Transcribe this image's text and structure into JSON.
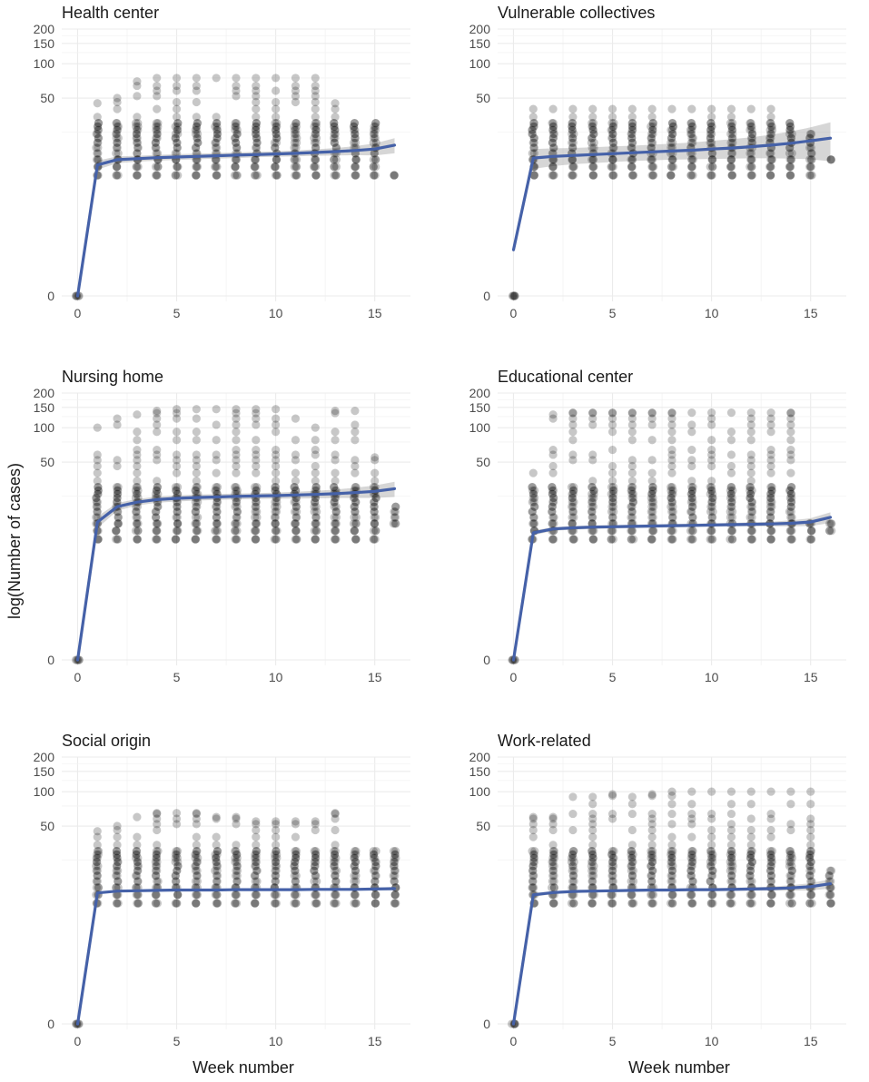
{
  "figure": {
    "y_axis_title": "log(Number of cases)",
    "x_axis_title": "Week number"
  },
  "chart_data": [
    {
      "type": "scatter",
      "title": "Health center",
      "xlabel": "Week number",
      "ylabel": "log(Number of cases)",
      "xlim": [
        -0.8,
        16.8
      ],
      "x_ticks": [
        "0",
        "5",
        "10",
        "15"
      ],
      "y_ticks": [
        "0",
        "50",
        "100",
        "150",
        "200"
      ],
      "y_scale": "log",
      "points_max": [
        0,
        45,
        50,
        70,
        75,
        75,
        75,
        75,
        75,
        75,
        75,
        75,
        75,
        45,
        30,
        30,
        10
      ],
      "points_min": [
        0,
        10,
        10,
        10,
        10,
        10,
        10,
        10,
        10,
        10,
        10,
        10,
        10,
        10,
        10,
        10,
        10
      ],
      "trend": [
        0,
        12.5,
        14,
        14.3,
        14.6,
        14.8,
        15.0,
        15.2,
        15.4,
        15.6,
        15.8,
        16.0,
        16.3,
        16.6,
        17.0,
        17.5,
        19
      ],
      "ci_width": [
        0,
        1.2,
        1.0,
        0.9,
        0.9,
        0.9,
        0.9,
        0.9,
        0.9,
        0.9,
        0.9,
        1.0,
        1.1,
        1.3,
        1.6,
        2.2,
        3.0
      ]
    },
    {
      "type": "scatter",
      "title": "Vulnerable collectives",
      "xlabel": "Week number",
      "ylabel": "log(Number of cases)",
      "xlim": [
        -0.8,
        16.8
      ],
      "x_ticks": [
        "0",
        "5",
        "10",
        "15"
      ],
      "y_ticks": [
        "0",
        "50",
        "100",
        "150",
        "200"
      ],
      "y_scale": "log",
      "points_max": [
        0,
        40,
        40,
        40,
        40,
        40,
        40,
        40,
        40,
        40,
        40,
        40,
        40,
        40,
        30,
        25,
        14
      ],
      "points_min": [
        0,
        10,
        10,
        10,
        10,
        10,
        10,
        10,
        10,
        10,
        10,
        10,
        10,
        10,
        10,
        10,
        14
      ],
      "trend": [
        1.5,
        14.5,
        15.0,
        15.3,
        15.6,
        15.9,
        16.2,
        16.5,
        16.8,
        17.1,
        17.5,
        17.9,
        18.4,
        19.0,
        19.8,
        20.8,
        22
      ],
      "ci_width": [
        0,
        3.0,
        2.8,
        2.6,
        2.6,
        2.6,
        2.6,
        2.7,
        2.8,
        3.0,
        3.3,
        3.6,
        4.0,
        4.6,
        5.5,
        6.7,
        8.5
      ]
    },
    {
      "type": "scatter",
      "title": "Nursing home",
      "xlabel": "Week number",
      "ylabel": "log(Number of cases)",
      "xlim": [
        -0.8,
        16.8
      ],
      "x_ticks": [
        "0",
        "5",
        "10",
        "15"
      ],
      "y_ticks": [
        "0",
        "50",
        "100",
        "150",
        "200"
      ],
      "y_scale": "log",
      "points_max": [
        0,
        100,
        120,
        130,
        140,
        145,
        145,
        145,
        145,
        145,
        145,
        120,
        100,
        140,
        140,
        55,
        20
      ],
      "points_min": [
        0,
        10,
        10,
        10,
        10,
        10,
        10,
        10,
        10,
        10,
        10,
        10,
        10,
        10,
        10,
        10,
        14
      ],
      "trend": [
        0,
        14.5,
        20,
        22,
        23.2,
        23.8,
        24.2,
        24.5,
        24.8,
        25.0,
        25.2,
        25.5,
        25.8,
        26.2,
        26.8,
        27.5,
        29
      ],
      "ci_width": [
        0,
        1.8,
        1.6,
        1.5,
        1.5,
        1.5,
        1.5,
        1.5,
        1.5,
        1.5,
        1.6,
        1.8,
        2.0,
        2.3,
        2.8,
        3.5,
        4.5
      ]
    },
    {
      "type": "scatter",
      "title": "Educational center",
      "xlabel": "Week number",
      "ylabel": "log(Number of cases)",
      "xlim": [
        -0.8,
        16.8
      ],
      "x_ticks": [
        "0",
        "5",
        "10",
        "15"
      ],
      "y_ticks": [
        "0",
        "50",
        "100",
        "150",
        "200"
      ],
      "y_scale": "log",
      "points_max": [
        0,
        40,
        130,
        135,
        135,
        135,
        135,
        135,
        135,
        135,
        135,
        135,
        135,
        135,
        135,
        15,
        14
      ],
      "points_min": [
        0,
        10,
        10,
        10,
        10,
        10,
        10,
        10,
        10,
        10,
        10,
        10,
        10,
        10,
        10,
        10,
        12
      ],
      "trend": [
        0,
        11.5,
        12.5,
        12.8,
        13.0,
        13.1,
        13.2,
        13.3,
        13.4,
        13.5,
        13.6,
        13.7,
        13.8,
        13.9,
        14.1,
        14.5,
        16
      ],
      "ci_width": [
        0,
        0.6,
        0.5,
        0.5,
        0.5,
        0.5,
        0.5,
        0.5,
        0.5,
        0.5,
        0.5,
        0.5,
        0.6,
        0.7,
        0.9,
        1.2,
        1.8
      ]
    },
    {
      "type": "scatter",
      "title": "Social origin",
      "xlabel": "Week number",
      "ylabel": "log(Number of cases)",
      "xlim": [
        -0.8,
        16.8
      ],
      "x_ticks": [
        "0",
        "5",
        "10",
        "15"
      ],
      "y_ticks": [
        "0",
        "50",
        "100",
        "150",
        "200"
      ],
      "y_scale": "log",
      "points_max": [
        0,
        45,
        50,
        60,
        65,
        65,
        65,
        60,
        60,
        55,
        55,
        55,
        55,
        65,
        30,
        30,
        30
      ],
      "points_min": [
        0,
        10,
        10,
        10,
        10,
        10,
        10,
        10,
        10,
        10,
        10,
        10,
        10,
        10,
        10,
        10,
        10
      ],
      "trend": [
        0,
        12.5,
        13.0,
        13.1,
        13.2,
        13.3,
        13.3,
        13.3,
        13.4,
        13.4,
        13.4,
        13.4,
        13.5,
        13.5,
        13.5,
        13.6,
        13.7
      ],
      "ci_width": [
        0,
        0.3,
        0.3,
        0.3,
        0.3,
        0.3,
        0.3,
        0.3,
        0.3,
        0.3,
        0.3,
        0.3,
        0.3,
        0.3,
        0.35,
        0.4,
        0.5
      ]
    },
    {
      "type": "scatter",
      "title": "Work-related",
      "xlabel": "Week number",
      "ylabel": "log(Number of cases)",
      "xlim": [
        -0.8,
        16.8
      ],
      "x_ticks": [
        "0",
        "5",
        "10",
        "15"
      ],
      "y_ticks": [
        "0",
        "50",
        "100",
        "150",
        "200"
      ],
      "y_scale": "log",
      "points_max": [
        0,
        60,
        60,
        90,
        90,
        95,
        90,
        95,
        100,
        100,
        100,
        100,
        100,
        100,
        100,
        100,
        20
      ],
      "points_min": [
        0,
        10,
        10,
        10,
        10,
        10,
        10,
        10,
        10,
        10,
        10,
        10,
        10,
        10,
        10,
        10,
        10
      ],
      "trend": [
        0,
        12.0,
        12.6,
        12.9,
        13.0,
        13.1,
        13.2,
        13.3,
        13.3,
        13.4,
        13.4,
        13.5,
        13.6,
        13.7,
        13.9,
        14.3,
        15.2
      ],
      "ci_width": [
        0,
        0.5,
        0.4,
        0.4,
        0.4,
        0.4,
        0.4,
        0.4,
        0.4,
        0.4,
        0.4,
        0.5,
        0.5,
        0.6,
        0.8,
        1.1,
        1.5
      ]
    }
  ]
}
